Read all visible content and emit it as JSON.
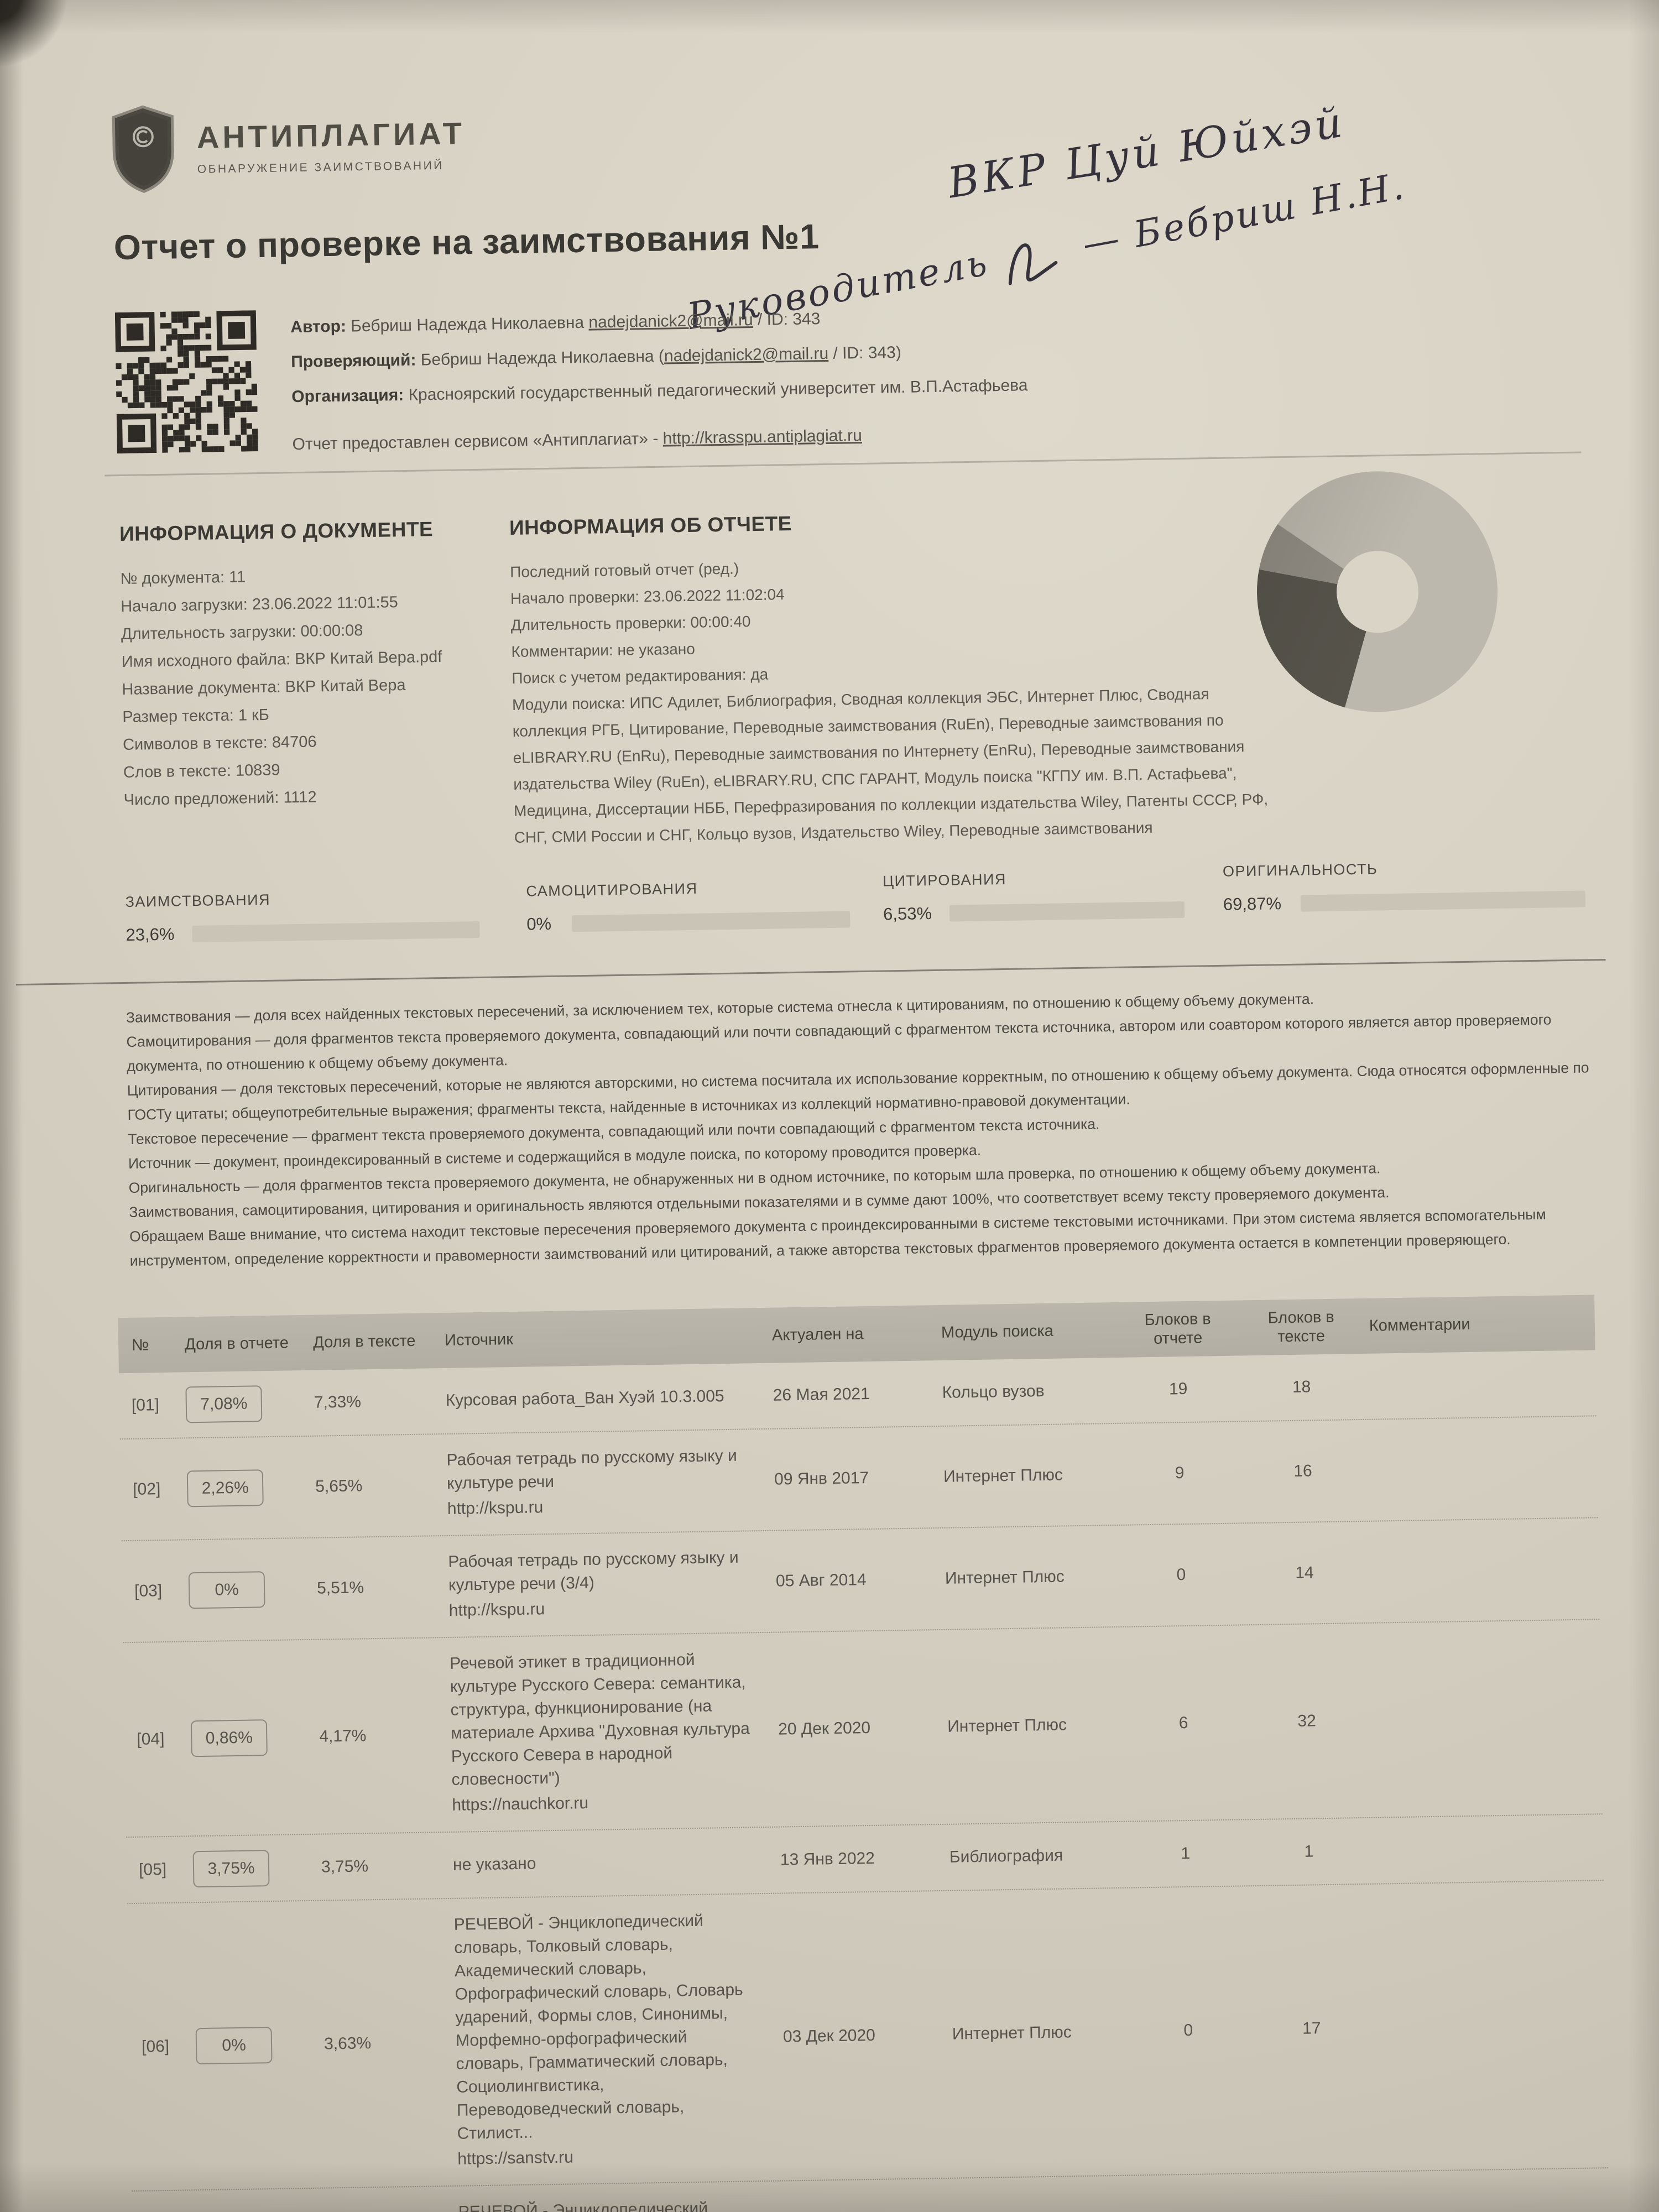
{
  "logo": {
    "brand": "АНТИПЛАГИАТ",
    "tagline": "ОБНАРУЖЕНИЕ ЗАИМСТВОВАНИЙ"
  },
  "title": "Отчет о проверке на заимствования №1",
  "handwriting": {
    "line1": "ВКР Цуй Юйхэй",
    "line2_role": "Руководитель",
    "line2_name": "— Бебриш Н.Н."
  },
  "meta": {
    "author_label": "Автор:",
    "author_name": "Бебриш Надежда Николаевна ",
    "author_email": "nadejdanick2@mail.ru",
    "author_tail": " / ID: 343",
    "reviewer_label": "Проверяющий:",
    "reviewer_name": "Бебриш Надежда Николаевна (",
    "reviewer_email": "nadejdanick2@mail.ru",
    "reviewer_tail": " / ID: 343)",
    "org_label": "Организация:",
    "org_value": "Красноярский государственный педагогический университет им. В.П.Астафьева",
    "service_prefix": "Отчет предоставлен сервисом «Антиплагиат» - ",
    "service_link": "http://krasspu.antiplagiat.ru"
  },
  "doc_info": {
    "heading": "ИНФОРМАЦИЯ О ДОКУМЕНТЕ",
    "lines": [
      "№ документа: 11",
      "Начало загрузки: 23.06.2022 11:01:55",
      "Длительность загрузки: 00:00:08",
      "Имя исходного файла: ВКР Китай Вера.pdf",
      "Название документа: ВКР Китай Вера",
      "Размер текста: 1 кБ",
      "Символов в тексте: 84706",
      "Слов в тексте: 10839",
      "Число предложений: 1112"
    ]
  },
  "report_info": {
    "heading": "ИНФОРМАЦИЯ ОБ ОТЧЕТЕ",
    "lines": [
      "Последний готовый отчет (ред.)",
      "Начало проверки: 23.06.2022 11:02:04",
      "Длительность проверки: 00:00:40",
      "Комментарии: не указано",
      "Поиск с учетом редактирования: да",
      "Модули поиска: ИПС Адилет, Библиография, Сводная коллекция ЭБС, Интернет Плюс, Сводная коллекция РГБ, Цитирование, Переводные заимствования (RuEn), Переводные заимствования по eLIBRARY.RU (EnRu), Переводные заимствования по Интернету (EnRu), Переводные заимствования издательства Wiley (RuEn), eLIBRARY.RU, СПС ГАРАНТ, Модуль поиска \"КГПУ им. В.П. Астафьева\", Медицина, Диссертации НББ, Перефразирования по коллекции издательства Wiley, Патенты СССР, РФ, СНГ, СМИ России и СНГ, Кольцо вузов, Издательство Wiley, Переводные заимствования"
    ]
  },
  "chart_data": {
    "type": "pie",
    "title": "",
    "rotate": -55,
    "donut_hole_ratio": 0.34,
    "legend": false,
    "segments": [
      {
        "label": "Оригинальность",
        "value": 69.87,
        "color": "#bcb8ae"
      },
      {
        "label": "Заимствования",
        "value": 23.6,
        "color": "#56534b"
      },
      {
        "label": "Цитирования",
        "value": 6.53,
        "color": "#908c83"
      },
      {
        "label": "Самоцитирования",
        "value": 0,
        "color": "#c4c0b5"
      }
    ]
  },
  "metrics": [
    {
      "label": "ЗАИМСТВОВАНИЯ",
      "value": "23,6%",
      "percent": 23.6,
      "fill_style": "width:23.6%;background:#4e4a43"
    },
    {
      "label": "САМОЦИТИРОВАНИЯ",
      "value": "0%",
      "percent": 0,
      "fill_style": "width:0%;background:#8d8980"
    },
    {
      "label": "ЦИТИРОВАНИЯ",
      "value": "6,53%",
      "percent": 6.53,
      "fill_style": "width:6.53%;background:#6e6a61"
    },
    {
      "label": "ОРИГИНАЛЬНОСТЬ",
      "value": "69,87%",
      "percent": 69.87,
      "fill_style": "width:69.87%;background:#a5a196"
    }
  ],
  "definitions": [
    "Заимствования — доля всех найденных текстовых пересечений, за исключением тех, которые система отнесла к цитированиям, по отношению к общему объему документа.",
    "Самоцитирования — доля фрагментов текста проверяемого документа, совпадающий или почти совпадающий с фрагментом текста источника, автором или соавтором которого является автор проверяемого документа, по отношению к общему объему документа.",
    "Цитирования — доля текстовых пересечений, которые не являются авторскими, но система посчитала их использование корректным, по отношению к общему объему документа. Сюда относятся оформленные по ГОСТу цитаты; общеупотребительные выражения; фрагменты текста, найденные в источниках из коллекций нормативно-правовой документации.",
    "Текстовое пересечение — фрагмент текста проверяемого документа, совпадающий или почти совпадающий с фрагментом текста источника.",
    "Источник — документ, проиндексированный в системе и содержащийся в модуле поиска, по которому проводится проверка.",
    "Оригинальность — доля фрагментов текста проверяемого документа, не обнаруженных ни в одном источнике, по которым шла проверка, по отношению к общему объему документа.",
    "Заимствования, самоцитирования, цитирования и оригинальность являются отдельными показателями и в сумме дают 100%, что соответствует всему тексту проверяемого документа.",
    "Обращаем Ваше внимание, что система находит текстовые пересечения проверяемого документа с проиндексированными в системе текстовыми источниками. При этом система является вспомогательным инструментом, определение корректности и правомерности заимствований или цитирований, а также авторства текстовых фрагментов проверяемого документа остается в компетенции проверяющего."
  ],
  "table": {
    "headers": {
      "num": "№",
      "share_report": "Доля в отчете",
      "share_text": "Доля в тексте",
      "source": "Источник",
      "date": "Актуален на",
      "module": "Модуль поиска",
      "blocks_report": "Блоков в отчете",
      "blocks_text": "Блоков в тексте",
      "comments": "Комментарии"
    },
    "rows": [
      {
        "num": "[01]",
        "share_report": "7,08%",
        "share_text": "7,33%",
        "source": "Курсовая работа_Ван Хуэй 10.3.005",
        "link": "",
        "date": "26 Мая 2021",
        "module": "Кольцо вузов",
        "blocks_report": "19",
        "blocks_text": "18",
        "comment": ""
      },
      {
        "num": "[02]",
        "share_report": "2,26%",
        "share_text": "5,65%",
        "source": "Рабочая тетрадь по русскому языку и культуре речи",
        "link": "http://kspu.ru",
        "date": "09 Янв 2017",
        "module": "Интернет Плюс",
        "blocks_report": "9",
        "blocks_text": "16",
        "comment": ""
      },
      {
        "num": "[03]",
        "share_report": "0%",
        "share_text": "5,51%",
        "source": "Рабочая тетрадь по русскому языку и культуре речи (3/4)",
        "link": "http://kspu.ru",
        "date": "05 Авг 2014",
        "module": "Интернет Плюс",
        "blocks_report": "0",
        "blocks_text": "14",
        "comment": ""
      },
      {
        "num": "[04]",
        "share_report": "0,86%",
        "share_text": "4,17%",
        "source": "Речевой этикет в традиционной культуре Русского Севера: семантика, структура, функционирование (на материале Архива \"Духовная культура Русского Севера в народной словесности\")",
        "link": "https://nauchkor.ru",
        "date": "20 Дек 2020",
        "module": "Интернет Плюс",
        "blocks_report": "6",
        "blocks_text": "32",
        "comment": ""
      },
      {
        "num": "[05]",
        "share_report": "3,75%",
        "share_text": "3,75%",
        "source": "не указано",
        "link": "",
        "date": "13 Янв 2022",
        "module": "Библиография",
        "blocks_report": "1",
        "blocks_text": "1",
        "comment": ""
      },
      {
        "num": "[06]",
        "share_report": "0%",
        "share_text": "3,63%",
        "source": "РЕЧЕВОЙ - Энциклопедический словарь, Толковый словарь, Академический словарь, Орфографический словарь, Словарь ударений, Формы слов, Синонимы, Морфемно-орфографический словарь, Грамматический словарь, Социолингвистика, Переводоведческий словарь, Стилист...",
        "link": "https://sanstv.ru",
        "date": "03 Дек 2020",
        "module": "Интернет Плюс",
        "blocks_report": "0",
        "blocks_text": "17",
        "comment": ""
      },
      {
        "num": "",
        "share_report": "",
        "share_text": "",
        "source": "РЕЧЕВОЙ - Энциклопедический словарь, Толковый словарь, Академический словарь, Орфографический словарь, Словарь",
        "link": "",
        "date": "",
        "module": "",
        "blocks_report": "",
        "blocks_text": "",
        "comment": ""
      }
    ]
  }
}
